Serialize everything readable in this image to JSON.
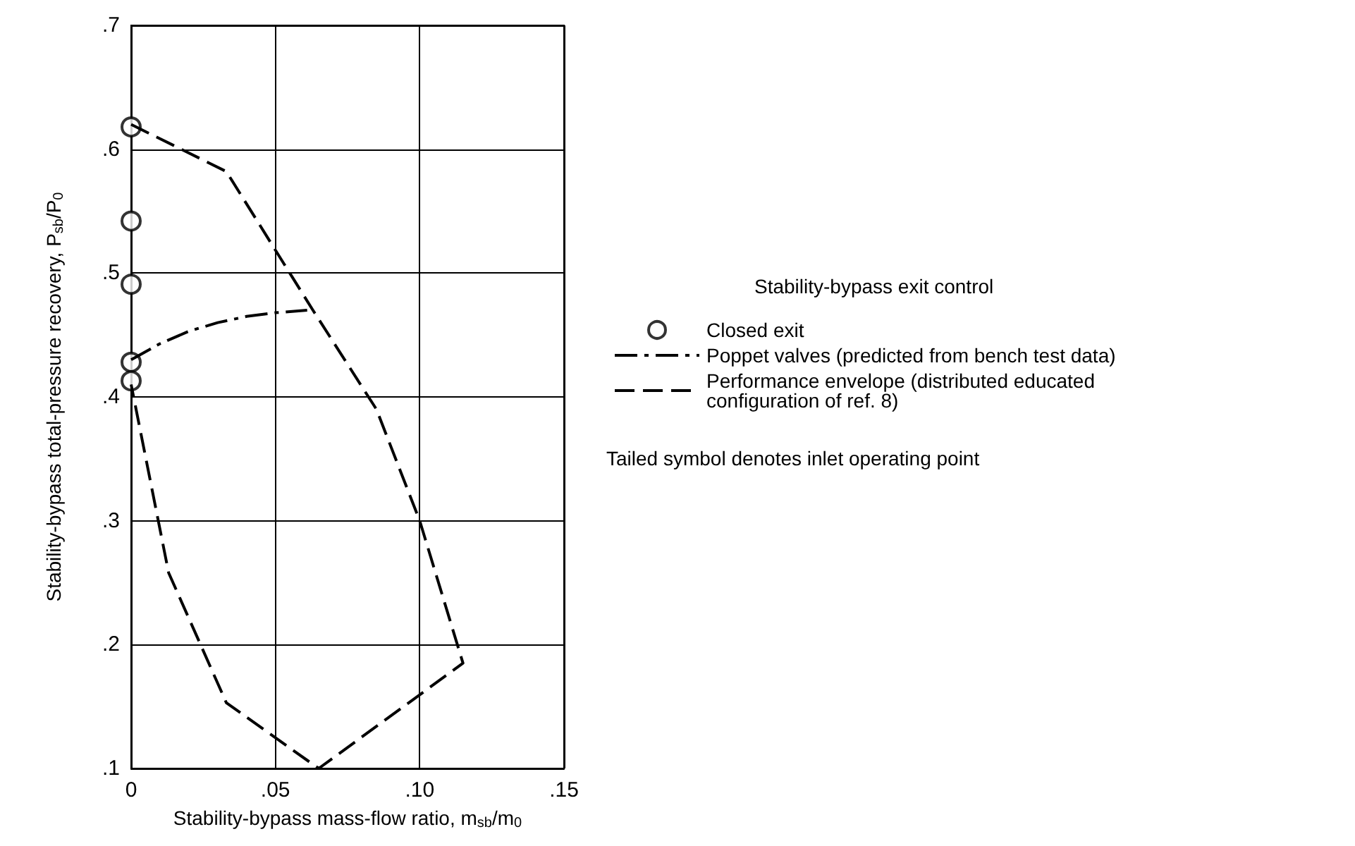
{
  "chart_data": {
    "type": "line",
    "xlabel": "Stability-bypass mass-flow ratio, m$_{sb}$/m$_{0}$",
    "ylabel": "Stability-bypass total-pressure recovery, P$_{sb}$/P$_{0}$",
    "legend_title": "Stability-bypass exit control",
    "annotations": [
      "Tailed symbol denotes inlet operating point"
    ],
    "xlim": [
      0,
      0.15
    ],
    "ylim": [
      0.1,
      0.7
    ],
    "xticks": [
      {
        "value": 0,
        "label": "0"
      },
      {
        "value": 0.05,
        "label": ".05"
      },
      {
        "value": 0.1,
        "label": ".10"
      },
      {
        "value": 0.15,
        "label": ".15"
      }
    ],
    "yticks": [
      {
        "value": 0.1,
        "label": ".1"
      },
      {
        "value": 0.2,
        "label": ".2"
      },
      {
        "value": 0.3,
        "label": ".3"
      },
      {
        "value": 0.4,
        "label": ".4"
      },
      {
        "value": 0.5,
        "label": ".5"
      },
      {
        "value": 0.6,
        "label": ".6"
      },
      {
        "value": 0.7,
        "label": ".7"
      }
    ],
    "grid": true,
    "legend": "right",
    "series": [
      {
        "name": "Closed exit",
        "type": "scatter",
        "marker": "circle",
        "color": "#000000",
        "x": [
          0,
          0,
          0,
          0,
          0
        ],
        "values": [
          0.618,
          0.542,
          0.491,
          0.428,
          0.413
        ]
      },
      {
        "name": "Poppet valves (predicted from bench test data)",
        "line_style": "dashdot",
        "color": "#000000",
        "x": [
          0,
          0.01,
          0.02,
          0.03,
          0.04,
          0.05,
          0.061
        ],
        "values": [
          0.43,
          0.443,
          0.453,
          0.46,
          0.465,
          0.468,
          0.47
        ]
      },
      {
        "name": "Performance envelope (distributed educated configuration of ref. 8)",
        "line_style": "dashed",
        "color": "#000000",
        "x": [
          0,
          0.033,
          0.063,
          0.085,
          0.1,
          0.115,
          0.065,
          0.033,
          0.013,
          0
        ],
        "values": [
          0.62,
          0.582,
          0.47,
          0.39,
          0.3,
          0.185,
          0.1,
          0.153,
          0.258,
          0.41
        ]
      }
    ]
  }
}
